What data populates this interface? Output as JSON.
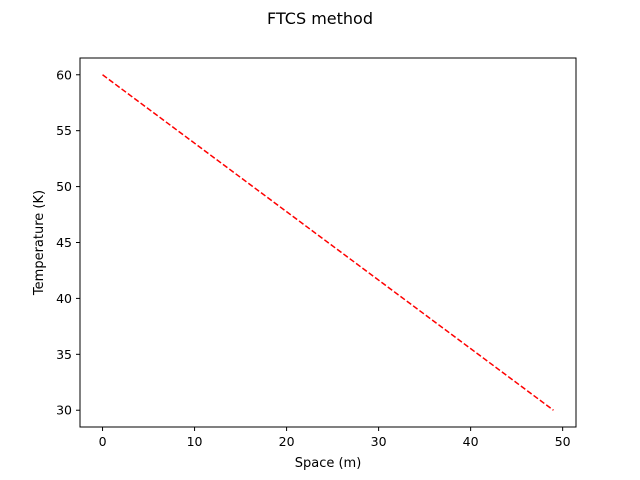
{
  "chart_data": {
    "type": "line",
    "title": "FTCS method",
    "xlabel": "Space (m)",
    "ylabel": "Temperature (K)",
    "xlim": [
      -2.45,
      51.45
    ],
    "ylim": [
      28.5,
      61.5
    ],
    "xticks": [
      0,
      10,
      20,
      30,
      40,
      50
    ],
    "yticks": [
      30,
      35,
      40,
      45,
      50,
      55,
      60
    ],
    "grid": false,
    "series": [
      {
        "color": "#ff0000",
        "line_style": "dashed",
        "x": [
          0,
          49
        ],
        "y": [
          60,
          30
        ]
      }
    ]
  }
}
